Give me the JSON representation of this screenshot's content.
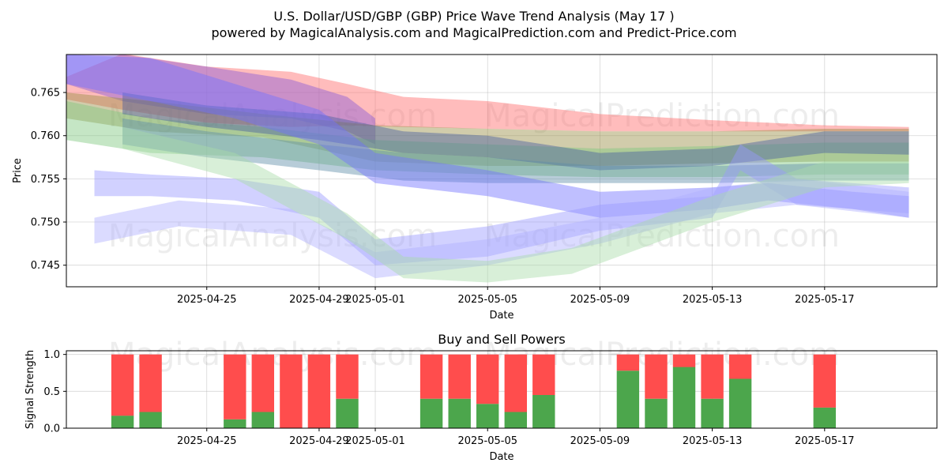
{
  "chart_data": [
    {
      "type": "area",
      "title": "U.S. Dollar/USD/GBP (GBP) Price Wave Trend Analysis (May 17 )",
      "subtitle": "powered by MagicalAnalysis.com and MagicalPrediction.com and Predict-Price.com",
      "xlabel": "Date",
      "ylabel": "Price",
      "grid": true,
      "xlim": [
        "2025-04-20",
        "2025-05-21"
      ],
      "ylim": [
        0.7425,
        0.7694
      ],
      "x_ticks": [
        "2025-04-25",
        "2025-04-29",
        "2025-05-01",
        "2025-05-05",
        "2025-05-09",
        "2025-05-13",
        "2025-05-17"
      ],
      "y_ticks": [
        0.745,
        0.75,
        0.755,
        0.76,
        0.765
      ],
      "watermarks": [
        "MagicalAnalysis.com",
        "MagicalPrediction.com"
      ],
      "series": [
        {
          "name": "red band",
          "color": "#ff6b6b",
          "points": [
            {
              "x": "2025-04-20",
              "lo": 0.7642,
              "hi": 0.7668
            },
            {
              "x": "2025-04-22",
              "lo": 0.763,
              "hi": 0.7695
            },
            {
              "x": "2025-04-25",
              "lo": 0.7615,
              "hi": 0.768
            },
            {
              "x": "2025-04-28",
              "lo": 0.761,
              "hi": 0.7674
            },
            {
              "x": "2025-04-30",
              "lo": 0.7612,
              "hi": 0.766
            },
            {
              "x": "2025-05-02",
              "lo": 0.761,
              "hi": 0.7645
            },
            {
              "x": "2025-05-05",
              "lo": 0.7608,
              "hi": 0.764
            },
            {
              "x": "2025-05-09",
              "lo": 0.7605,
              "hi": 0.7625
            },
            {
              "x": "2025-05-13",
              "lo": 0.7605,
              "hi": 0.7618
            },
            {
              "x": "2025-05-17",
              "lo": 0.7605,
              "hi": 0.7612
            },
            {
              "x": "2025-05-20",
              "lo": 0.7605,
              "hi": 0.761
            }
          ]
        },
        {
          "name": "purple band",
          "color": "#8a5cd8",
          "points": [
            {
              "x": "2025-04-20",
              "lo": 0.766,
              "hi": 0.7694
            },
            {
              "x": "2025-04-22",
              "lo": 0.764,
              "hi": 0.7694
            },
            {
              "x": "2025-04-25",
              "lo": 0.7625,
              "hi": 0.768
            },
            {
              "x": "2025-04-28",
              "lo": 0.762,
              "hi": 0.7665
            },
            {
              "x": "2025-04-30",
              "lo": 0.7605,
              "hi": 0.7645
            },
            {
              "x": "2025-05-01",
              "lo": 0.759,
              "hi": 0.762
            }
          ]
        },
        {
          "name": "olive band",
          "color": "#9a8d45",
          "points": [
            {
              "x": "2025-04-20",
              "lo": 0.762,
              "hi": 0.765
            },
            {
              "x": "2025-04-23",
              "lo": 0.7605,
              "hi": 0.764
            },
            {
              "x": "2025-04-27",
              "lo": 0.7598,
              "hi": 0.7625
            },
            {
              "x": "2025-05-01",
              "lo": 0.757,
              "hi": 0.7612
            },
            {
              "x": "2025-05-05",
              "lo": 0.7565,
              "hi": 0.7608
            },
            {
              "x": "2025-05-09",
              "lo": 0.7565,
              "hi": 0.7605
            },
            {
              "x": "2025-05-13",
              "lo": 0.7568,
              "hi": 0.7605
            },
            {
              "x": "2025-05-17",
              "lo": 0.757,
              "hi": 0.7608
            },
            {
              "x": "2025-05-20",
              "lo": 0.757,
              "hi": 0.7608
            }
          ]
        },
        {
          "name": "green band",
          "color": "#7fc77f",
          "points": [
            {
              "x": "2025-04-20",
              "lo": 0.7595,
              "hi": 0.764
            },
            {
              "x": "2025-04-23",
              "lo": 0.758,
              "hi": 0.762
            },
            {
              "x": "2025-04-27",
              "lo": 0.7575,
              "hi": 0.761
            },
            {
              "x": "2025-05-01",
              "lo": 0.756,
              "hi": 0.7595
            },
            {
              "x": "2025-05-05",
              "lo": 0.7555,
              "hi": 0.759
            },
            {
              "x": "2025-05-09",
              "lo": 0.7552,
              "hi": 0.7585
            },
            {
              "x": "2025-05-13",
              "lo": 0.7552,
              "hi": 0.7588
            },
            {
              "x": "2025-05-17",
              "lo": 0.7555,
              "hi": 0.7592
            },
            {
              "x": "2025-05-20",
              "lo": 0.7555,
              "hi": 0.7592
            }
          ]
        },
        {
          "name": "dark blue band",
          "color": "#4a5fa0",
          "points": [
            {
              "x": "2025-04-22",
              "lo": 0.7625,
              "hi": 0.765
            },
            {
              "x": "2025-04-25",
              "lo": 0.761,
              "hi": 0.7635
            },
            {
              "x": "2025-04-29",
              "lo": 0.7595,
              "hi": 0.7625
            },
            {
              "x": "2025-05-02",
              "lo": 0.758,
              "hi": 0.7605
            },
            {
              "x": "2025-05-05",
              "lo": 0.7575,
              "hi": 0.76
            },
            {
              "x": "2025-05-09",
              "lo": 0.756,
              "hi": 0.758
            },
            {
              "x": "2025-05-13",
              "lo": 0.7565,
              "hi": 0.7585
            },
            {
              "x": "2025-05-17",
              "lo": 0.758,
              "hi": 0.7605
            },
            {
              "x": "2025-05-20",
              "lo": 0.7578,
              "hi": 0.7605
            }
          ]
        },
        {
          "name": "teal band",
          "color": "#5f8fa8",
          "points": [
            {
              "x": "2025-04-22",
              "lo": 0.759,
              "hi": 0.762
            },
            {
              "x": "2025-04-25",
              "lo": 0.7575,
              "hi": 0.7605
            },
            {
              "x": "2025-04-29",
              "lo": 0.756,
              "hi": 0.759
            },
            {
              "x": "2025-05-02",
              "lo": 0.7548,
              "hi": 0.758
            },
            {
              "x": "2025-05-05",
              "lo": 0.7545,
              "hi": 0.7575
            },
            {
              "x": "2025-05-09",
              "lo": 0.7545,
              "hi": 0.7565
            },
            {
              "x": "2025-05-13",
              "lo": 0.7545,
              "hi": 0.7565
            },
            {
              "x": "2025-05-17",
              "lo": 0.7548,
              "hi": 0.7568
            },
            {
              "x": "2025-05-20",
              "lo": 0.7548,
              "hi": 0.7568
            }
          ]
        },
        {
          "name": "blue band 1",
          "color": "#7070ff",
          "points": [
            {
              "x": "2025-04-20",
              "lo": 0.766,
              "hi": 0.7694
            },
            {
              "x": "2025-04-23",
              "lo": 0.764,
              "hi": 0.769
            },
            {
              "x": "2025-04-26",
              "lo": 0.762,
              "hi": 0.766
            },
            {
              "x": "2025-04-29",
              "lo": 0.759,
              "hi": 0.763
            },
            {
              "x": "2025-05-01",
              "lo": 0.7545,
              "hi": 0.758
            },
            {
              "x": "2025-05-05",
              "lo": 0.753,
              "hi": 0.756
            },
            {
              "x": "2025-05-09",
              "lo": 0.7505,
              "hi": 0.7535
            },
            {
              "x": "2025-05-13",
              "lo": 0.7515,
              "hi": 0.754
            },
            {
              "x": "2025-05-15",
              "lo": 0.7525,
              "hi": 0.7545
            },
            {
              "x": "2025-05-18",
              "lo": 0.7515,
              "hi": 0.7535
            },
            {
              "x": "2025-05-20",
              "lo": 0.7505,
              "hi": 0.753
            }
          ]
        },
        {
          "name": "blue band 2",
          "color": "#9898ff",
          "points": [
            {
              "x": "2025-04-21",
              "lo": 0.753,
              "hi": 0.756
            },
            {
              "x": "2025-04-23",
              "lo": 0.753,
              "hi": 0.7555
            },
            {
              "x": "2025-04-26",
              "lo": 0.7525,
              "hi": 0.755
            },
            {
              "x": "2025-04-29",
              "lo": 0.7505,
              "hi": 0.7535
            },
            {
              "x": "2025-05-01",
              "lo": 0.745,
              "hi": 0.748
            },
            {
              "x": "2025-05-05",
              "lo": 0.746,
              "hi": 0.7495
            },
            {
              "x": "2025-05-09",
              "lo": 0.749,
              "hi": 0.752
            },
            {
              "x": "2025-05-13",
              "lo": 0.7505,
              "hi": 0.753
            },
            {
              "x": "2025-05-14",
              "lo": 0.756,
              "hi": 0.759
            },
            {
              "x": "2025-05-16",
              "lo": 0.752,
              "hi": 0.755
            },
            {
              "x": "2025-05-20",
              "lo": 0.751,
              "hi": 0.754
            }
          ]
        },
        {
          "name": "blue band 3",
          "color": "#b0b0ff",
          "points": [
            {
              "x": "2025-04-21",
              "lo": 0.7475,
              "hi": 0.7505
            },
            {
              "x": "2025-04-24",
              "lo": 0.7495,
              "hi": 0.7525
            },
            {
              "x": "2025-04-28",
              "lo": 0.7485,
              "hi": 0.7515
            },
            {
              "x": "2025-05-01",
              "lo": 0.7435,
              "hi": 0.7465
            },
            {
              "x": "2025-05-05",
              "lo": 0.745,
              "hi": 0.748
            },
            {
              "x": "2025-05-09",
              "lo": 0.7475,
              "hi": 0.7505
            },
            {
              "x": "2025-05-13",
              "lo": 0.751,
              "hi": 0.754
            },
            {
              "x": "2025-05-16",
              "lo": 0.752,
              "hi": 0.755
            },
            {
              "x": "2025-05-20",
              "lo": 0.7505,
              "hi": 0.7535
            }
          ]
        },
        {
          "name": "light green band",
          "color": "#a8dca8",
          "points": [
            {
              "x": "2025-04-22",
              "lo": 0.7585,
              "hi": 0.761
            },
            {
              "x": "2025-04-26",
              "lo": 0.755,
              "hi": 0.758
            },
            {
              "x": "2025-04-30",
              "lo": 0.748,
              "hi": 0.751
            },
            {
              "x": "2025-05-02",
              "lo": 0.7435,
              "hi": 0.746
            },
            {
              "x": "2025-05-05",
              "lo": 0.743,
              "hi": 0.7455
            },
            {
              "x": "2025-05-08",
              "lo": 0.744,
              "hi": 0.747
            },
            {
              "x": "2025-05-13",
              "lo": 0.75,
              "hi": 0.753
            },
            {
              "x": "2025-05-17",
              "lo": 0.754,
              "hi": 0.757
            },
            {
              "x": "2025-05-20",
              "lo": 0.7545,
              "hi": 0.757
            }
          ]
        }
      ]
    },
    {
      "type": "bar",
      "title": "Buy and Sell Powers",
      "xlabel": "Date",
      "ylabel": "Signal Strength",
      "ylim": [
        0,
        1.05
      ],
      "y_ticks": [
        0.0,
        0.5,
        1.0
      ],
      "x_ticks": [
        "2025-04-25",
        "2025-04-29",
        "2025-05-01",
        "2025-05-05",
        "2025-05-09",
        "2025-05-13",
        "2025-05-17"
      ],
      "grid": true,
      "buy_color": "#4ca64c",
      "sell_color": "#ff4d4d",
      "bars": [
        {
          "x": "2025-04-22",
          "buy": 0.17,
          "sell": 0.83
        },
        {
          "x": "2025-04-23",
          "buy": 0.22,
          "sell": 0.78
        },
        {
          "x": "2025-04-26",
          "buy": 0.12,
          "sell": 0.88
        },
        {
          "x": "2025-04-27",
          "buy": 0.22,
          "sell": 0.78
        },
        {
          "x": "2025-04-28",
          "buy": 0.0,
          "sell": 1.0
        },
        {
          "x": "2025-04-29",
          "buy": 0.0,
          "sell": 1.0
        },
        {
          "x": "2025-04-30",
          "buy": 0.4,
          "sell": 0.6
        },
        {
          "x": "2025-05-03",
          "buy": 0.4,
          "sell": 0.6
        },
        {
          "x": "2025-05-04",
          "buy": 0.4,
          "sell": 0.6
        },
        {
          "x": "2025-05-05",
          "buy": 0.33,
          "sell": 0.67
        },
        {
          "x": "2025-05-06",
          "buy": 0.22,
          "sell": 0.78
        },
        {
          "x": "2025-05-07",
          "buy": 0.45,
          "sell": 0.55
        },
        {
          "x": "2025-05-10",
          "buy": 0.78,
          "sell": 0.22
        },
        {
          "x": "2025-05-11",
          "buy": 0.4,
          "sell": 0.6
        },
        {
          "x": "2025-05-12",
          "buy": 0.83,
          "sell": 0.17
        },
        {
          "x": "2025-05-13",
          "buy": 0.4,
          "sell": 0.6
        },
        {
          "x": "2025-05-14",
          "buy": 0.67,
          "sell": 0.33
        },
        {
          "x": "2025-05-17",
          "buy": 0.28,
          "sell": 0.72
        }
      ]
    }
  ]
}
